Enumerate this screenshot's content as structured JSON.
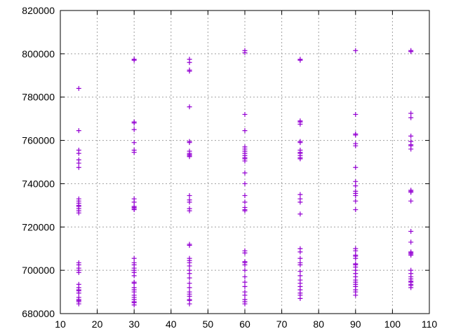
{
  "chart_data": {
    "type": "scatter",
    "title": "",
    "xlabel": "",
    "ylabel": "",
    "xlim": [
      10,
      110
    ],
    "ylim": [
      680000,
      820000
    ],
    "xticks": [
      10,
      20,
      30,
      40,
      50,
      60,
      70,
      80,
      90,
      100,
      110
    ],
    "yticks": [
      680000,
      700000,
      720000,
      740000,
      760000,
      780000,
      800000,
      820000
    ],
    "xtick_labels": [
      "10",
      "20",
      "30",
      "40",
      "50",
      "60",
      "70",
      "80",
      "90",
      "100",
      "110"
    ],
    "ytick_labels": [
      "680000",
      "700000",
      "720000",
      "740000",
      "760000",
      "780000",
      "800000",
      "820000"
    ],
    "grid": true,
    "marker": "plus",
    "color": "#9400d3",
    "series": [
      {
        "x": 15,
        "y": [
          784000,
          764500,
          755500,
          754000,
          751000,
          749500,
          747500,
          733000,
          732000,
          731000,
          730000,
          729500,
          728500,
          727500,
          726500,
          703500,
          702500,
          701000,
          700000,
          699000,
          693500,
          692000,
          691000,
          690500,
          689500,
          687500,
          686500,
          686000,
          685500,
          684500
        ]
      },
      {
        "x": 30,
        "y": [
          797500,
          797000,
          768500,
          768000,
          765000,
          759000,
          755500,
          754500,
          733000,
          731500,
          729500,
          729000,
          728500,
          728000,
          705500,
          703500,
          702500,
          701000,
          700000,
          699000,
          697500,
          694500,
          694000,
          692000,
          691000,
          690000,
          688500,
          687500,
          686500,
          685500,
          685000,
          684000
        ]
      },
      {
        "x": 45,
        "y": [
          797500,
          796000,
          792500,
          792000,
          775500,
          759500,
          759000,
          755000,
          754000,
          753500,
          753000,
          752500,
          734500,
          732500,
          731500,
          728500,
          727500,
          712000,
          711500,
          705500,
          704500,
          703500,
          702000,
          700000,
          698500,
          696500,
          694000,
          692000,
          690000,
          689000,
          688000,
          686500,
          686000,
          684500
        ]
      },
      {
        "x": 60,
        "y": [
          801500,
          800500,
          772000,
          764500,
          757000,
          756000,
          755000,
          754000,
          753000,
          752000,
          751500,
          750500,
          745000,
          740000,
          734500,
          731500,
          729000,
          728000,
          727500,
          709000,
          708000,
          704000,
          703500,
          702500,
          700000,
          697000,
          694500,
          692500,
          690000,
          688500,
          686500,
          685500,
          684500
        ]
      },
      {
        "x": 75,
        "y": [
          797500,
          797000,
          769000,
          768500,
          767500,
          759500,
          759000,
          755500,
          754500,
          754000,
          753000,
          752000,
          751500,
          735000,
          733000,
          731500,
          726000,
          710000,
          708500,
          705500,
          703500,
          702500,
          699500,
          697500,
          695500,
          694000,
          692500,
          691000,
          689500,
          688500,
          687000
        ]
      },
      {
        "x": 90,
        "y": [
          801500,
          772000,
          763000,
          762500,
          758500,
          757500,
          747500,
          741000,
          739000,
          736500,
          735500,
          734500,
          732000,
          728000,
          710000,
          709000,
          707000,
          706500,
          705500,
          703000,
          702500,
          701500,
          700000,
          698500,
          697000,
          695500,
          694500,
          693500,
          692500,
          691000,
          690000,
          688500
        ]
      },
      {
        "x": 105,
        "y": [
          801500,
          801000,
          772500,
          770500,
          762000,
          759500,
          758000,
          757500,
          756000,
          737000,
          736500,
          736000,
          732000,
          718000,
          713000,
          708500,
          708000,
          707500,
          707000,
          700000,
          698500,
          697000,
          696000,
          695000,
          694500,
          693500,
          693000,
          692000
        ]
      }
    ]
  }
}
